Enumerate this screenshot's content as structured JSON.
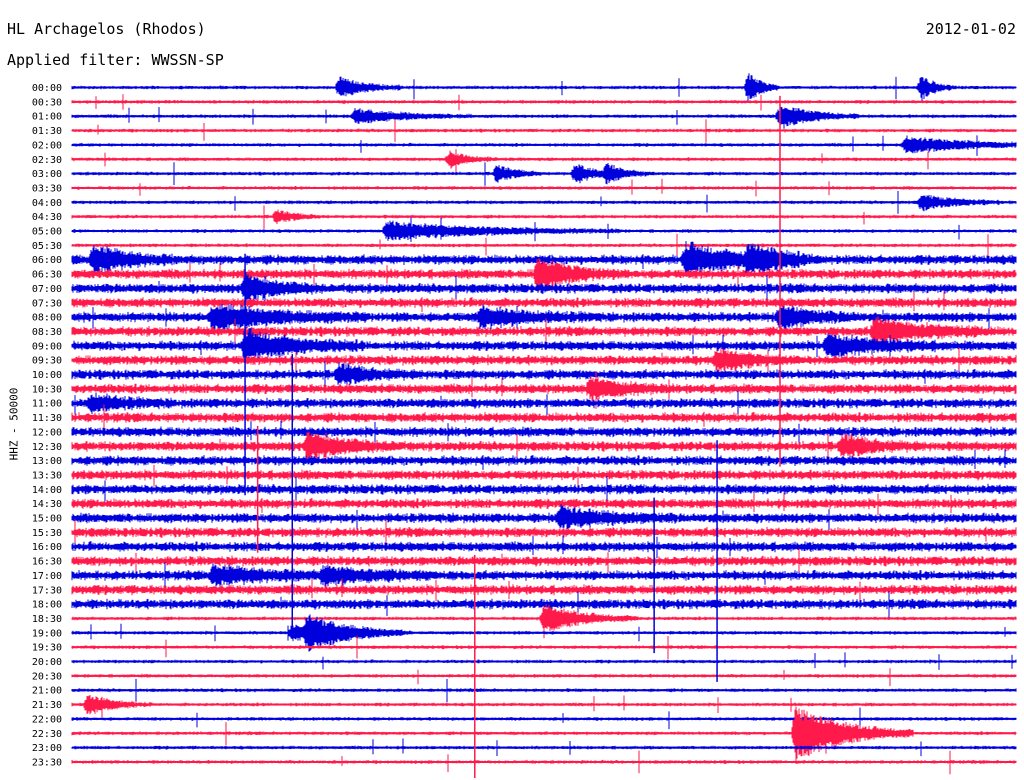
{
  "header": {
    "station": "HL Archagelos (Rhodos)",
    "date": "2012-01-02",
    "filter": "Applied filter: WWSSN-SP"
  },
  "chart_data": {
    "type": "line",
    "ylabel": "HHZ - 50000",
    "time_labels": [
      "00:00",
      "00:30",
      "01:00",
      "01:30",
      "02:00",
      "02:30",
      "03:00",
      "03:30",
      "04:00",
      "04:30",
      "05:00",
      "05:30",
      "06:00",
      "06:30",
      "07:00",
      "07:30",
      "08:00",
      "08:30",
      "09:00",
      "09:30",
      "10:00",
      "10:30",
      "11:00",
      "11:30",
      "12:00",
      "12:30",
      "13:00",
      "13:30",
      "14:00",
      "14:30",
      "15:00",
      "15:30",
      "16:00",
      "16:30",
      "17:00",
      "17:30",
      "18:00",
      "18:30",
      "19:00",
      "19:30",
      "20:00",
      "20:30",
      "21:00",
      "21:30",
      "22:00",
      "22:30",
      "23:00",
      "23:30"
    ],
    "row_minutes": 30,
    "row_colors": [
      "#0000dd",
      "#ff1a4b"
    ],
    "noise": {
      "quiet_amplitude": 1.5,
      "busy_amplitude": 4,
      "busy_rows": [
        12,
        36
      ]
    },
    "events": [
      {
        "row": 0,
        "minute": 8.5,
        "amplitude": 10,
        "duration": 0.8
      },
      {
        "row": 0,
        "minute": 21.5,
        "amplitude": 14,
        "duration": 0.4
      },
      {
        "row": 0,
        "minute": 27,
        "amplitude": 12,
        "duration": 0.4
      },
      {
        "row": 2,
        "minute": 9,
        "amplitude": 7,
        "duration": 1.5
      },
      {
        "row": 2,
        "minute": 22.5,
        "amplitude": 12,
        "duration": 1
      },
      {
        "row": 4,
        "minute": 26.5,
        "amplitude": 8,
        "duration": 2
      },
      {
        "row": 5,
        "minute": 12,
        "amplitude": 8,
        "duration": 0.6
      },
      {
        "row": 6,
        "minute": 13.5,
        "amplitude": 8,
        "duration": 0.6
      },
      {
        "row": 6,
        "minute": 16,
        "amplitude": 10,
        "duration": 0.6
      },
      {
        "row": 6,
        "minute": 17,
        "amplitude": 8,
        "duration": 0.6
      },
      {
        "row": 8,
        "minute": 27,
        "amplitude": 8,
        "duration": 1
      },
      {
        "row": 9,
        "minute": 6.5,
        "amplitude": 6,
        "duration": 0.6
      },
      {
        "row": 10,
        "minute": 10,
        "amplitude": 9,
        "duration": 3
      },
      {
        "row": 12,
        "minute": 0.7,
        "amplitude": 14,
        "duration": 1
      },
      {
        "row": 12,
        "minute": 19.5,
        "amplitude": 15,
        "duration": 1.5
      },
      {
        "row": 12,
        "minute": 21.5,
        "amplitude": 12,
        "duration": 1
      },
      {
        "row": 13,
        "minute": 14.8,
        "amplitude": 16,
        "duration": 1
      },
      {
        "row": 14,
        "minute": 5.5,
        "amplitude": 12,
        "duration": 1
      },
      {
        "row": 16,
        "minute": 4.5,
        "amplitude": 11,
        "duration": 2
      },
      {
        "row": 16,
        "minute": 13,
        "amplitude": 9,
        "duration": 1.5
      },
      {
        "row": 16,
        "minute": 22.5,
        "amplitude": 11,
        "duration": 1
      },
      {
        "row": 17,
        "minute": 25.5,
        "amplitude": 12,
        "duration": 1.5
      },
      {
        "row": 18,
        "minute": 5.5,
        "amplitude": 14,
        "duration": 1.5
      },
      {
        "row": 18,
        "minute": 24,
        "amplitude": 10,
        "duration": 1.5
      },
      {
        "row": 19,
        "minute": 20.5,
        "amplitude": 10,
        "duration": 1
      },
      {
        "row": 20,
        "minute": 8.5,
        "amplitude": 8,
        "duration": 1
      },
      {
        "row": 21,
        "minute": 16.5,
        "amplitude": 10,
        "duration": 1
      },
      {
        "row": 22,
        "minute": 0.6,
        "amplitude": 8,
        "duration": 1
      },
      {
        "row": 25,
        "minute": 7.5,
        "amplitude": 12,
        "duration": 1.2
      },
      {
        "row": 25,
        "minute": 24.5,
        "amplitude": 9,
        "duration": 1
      },
      {
        "row": 30,
        "minute": 15.5,
        "amplitude": 9,
        "duration": 1.5
      },
      {
        "row": 34,
        "minute": 4.5,
        "amplitude": 9,
        "duration": 1.5
      },
      {
        "row": 34,
        "minute": 8,
        "amplitude": 8,
        "duration": 1.5
      },
      {
        "row": 37,
        "minute": 15,
        "amplitude": 14,
        "duration": 1.2
      },
      {
        "row": 38,
        "minute": 7,
        "amplitude": 8,
        "duration": 1.5
      },
      {
        "row": 38,
        "minute": 7.5,
        "amplitude": 13,
        "duration": 1.2
      },
      {
        "row": 43,
        "minute": 0.5,
        "amplitude": 10,
        "duration": 0.8
      },
      {
        "row": 45,
        "minute": 23,
        "amplitude": 28,
        "duration": 1.5
      }
    ],
    "spikes": [
      {
        "minute": 7,
        "rows": [
          19,
          38
        ]
      },
      {
        "minute": 12.8,
        "rows": [
          33,
          48
        ]
      },
      {
        "minute": 20.5,
        "rows": [
          25,
          41
        ]
      },
      {
        "minute": 22.5,
        "rows": [
          1,
          26
        ]
      },
      {
        "minute": 18.5,
        "rows": [
          29,
          39
        ]
      },
      {
        "minute": 5.9,
        "rows": [
          24,
          32
        ]
      },
      {
        "minute": 5.5,
        "rows": [
          12,
          28
        ]
      }
    ]
  }
}
